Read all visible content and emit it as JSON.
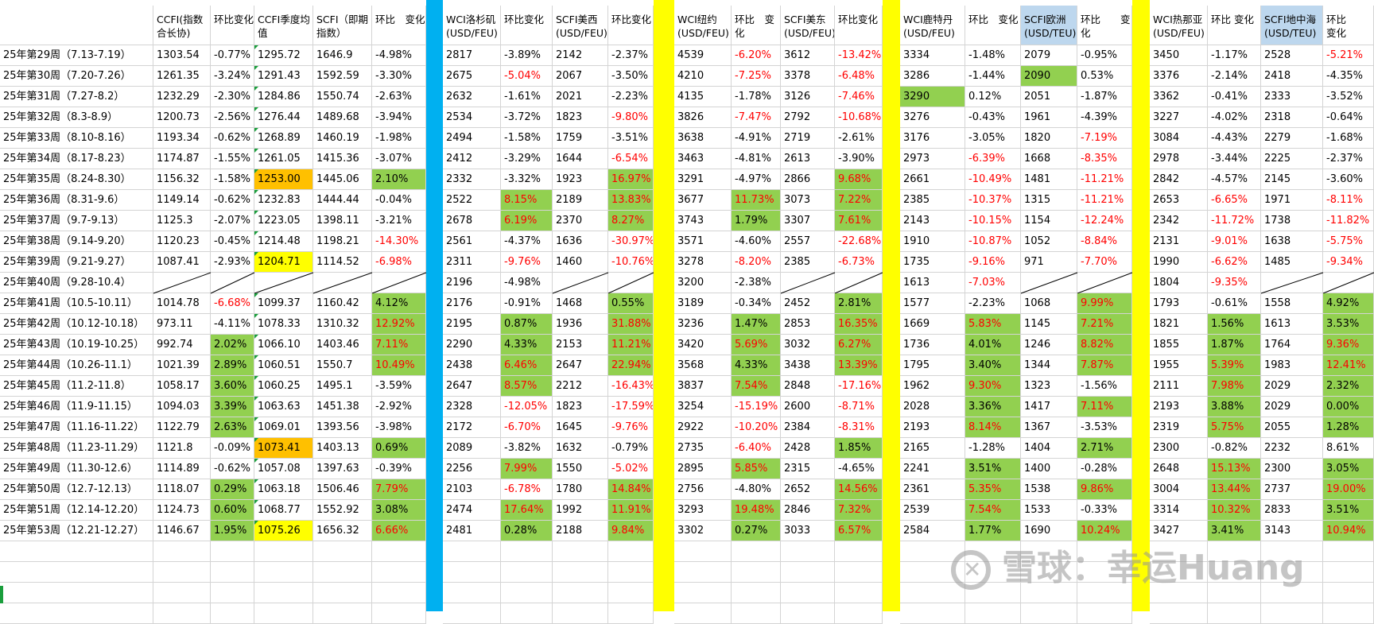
{
  "headers": [
    "CCFI(指数合长协)",
    "环比变化",
    "CCFI季度均值",
    "SCFI（即期指数）",
    "环比　变化",
    "WCI洛杉矶(USD/FEU)",
    "环比变化",
    "SCFI美西(USD/FEU)",
    "环比变化",
    "WCI纽约(USD/FEU)",
    "环比　变化",
    "SCFI美东(USD/FEU)",
    "环比变化",
    "WCI鹿特丹(USD/FEU)",
    "环比　变化",
    "SCFI欧洲(USD/TEU)",
    "环比　　变化",
    "WCI热那亚(USD/FEU)",
    "环比 变化",
    "SCFI地中海(USD/TEU)",
    "环比　　变化"
  ],
  "rows": [
    {
      "label": "25年第29周（7.13-7.19）",
      "cells": [
        "1303.54",
        "-0.77%",
        "1295.72",
        "1646.9",
        "-4.98%",
        "2817",
        "-3.89%",
        "2142",
        "-2.37%",
        "4539",
        "-6.20%",
        "3612",
        "-13.42%",
        "3334",
        "-1.48%",
        "2079",
        "-0.95%",
        "3450",
        "-1.17%",
        "2528",
        "-5.21%"
      ]
    },
    {
      "label": "25年第30周（7.20-7.26）",
      "cells": [
        "1261.35",
        "-3.24%",
        "1291.43",
        "1592.59",
        "-3.30%",
        "2675",
        "-5.04%",
        "2067",
        "-3.50%",
        "4210",
        "-7.25%",
        "3378",
        "-6.48%",
        "3286",
        "-1.44%",
        "2090",
        "0.53%",
        "3376",
        "-2.14%",
        "2418",
        "-4.35%"
      ]
    },
    {
      "label": "25年第31周（7.27-8.2）",
      "cells": [
        "1232.29",
        "-2.30%",
        "1284.86",
        "1550.74",
        "-2.63%",
        "2632",
        "-1.61%",
        "2021",
        "-2.23%",
        "4135",
        "-1.78%",
        "3126",
        "-7.46%",
        "3290",
        "0.12%",
        "2051",
        "-1.87%",
        "3362",
        "-0.41%",
        "2333",
        "-3.52%"
      ]
    },
    {
      "label": "25年第32周（8.3-8.9）",
      "cells": [
        "1200.73",
        "-2.56%",
        "1276.44",
        "1489.68",
        "-3.94%",
        "2534",
        "-3.72%",
        "1823",
        "-9.80%",
        "3826",
        "-7.47%",
        "2792",
        "-10.68%",
        "3276",
        "-0.43%",
        "1961",
        "-4.39%",
        "3227",
        "-4.02%",
        "2318",
        "-0.64%"
      ]
    },
    {
      "label": "25年第33周（8.10-8.16）",
      "cells": [
        "1193.34",
        "-0.62%",
        "1268.89",
        "1460.19",
        "-1.98%",
        "2494",
        "-1.58%",
        "1759",
        "-3.51%",
        "3638",
        "-4.91%",
        "2719",
        "-2.61%",
        "3176",
        "-3.05%",
        "1820",
        "-7.19%",
        "3084",
        "-4.43%",
        "2279",
        "-1.68%"
      ]
    },
    {
      "label": "25年第34周（8.17-8.23）",
      "cells": [
        "1174.87",
        "-1.55%",
        "1261.05",
        "1415.36",
        "-3.07%",
        "2412",
        "-3.29%",
        "1644",
        "-6.54%",
        "3463",
        "-4.81%",
        "2613",
        "-3.90%",
        "2973",
        "-6.39%",
        "1668",
        "-8.35%",
        "2978",
        "-3.44%",
        "2225",
        "-2.37%"
      ]
    },
    {
      "label": "25年第35周（8.24-8.30）",
      "cells": [
        "1156.32",
        "-1.58%",
        "1253.00",
        "1445.06",
        "2.10%",
        "2332",
        "-3.32%",
        "1923",
        "16.97%",
        "3291",
        "-4.97%",
        "2866",
        "9.68%",
        "2661",
        "-10.49%",
        "1481",
        "-11.21%",
        "2842",
        "-4.57%",
        "2145",
        "-3.60%"
      ]
    },
    {
      "label": "25年第36周（8.31-9.6）",
      "cells": [
        "1149.14",
        "-0.62%",
        "1232.83",
        "1444.44",
        "-0.04%",
        "2522",
        "8.15%",
        "2189",
        "13.83%",
        "3677",
        "11.73%",
        "3073",
        "7.22%",
        "2385",
        "-10.37%",
        "1315",
        "-11.21%",
        "2653",
        "-6.65%",
        "1971",
        "-8.11%"
      ]
    },
    {
      "label": "25年第37周（9.7-9.13）",
      "cells": [
        "1125.3",
        "-2.07%",
        "1223.05",
        "1398.11",
        "-3.21%",
        "2678",
        "6.19%",
        "2370",
        "8.27%",
        "3743",
        "1.79%",
        "3307",
        "7.61%",
        "2143",
        "-10.15%",
        "1154",
        "-12.24%",
        "2342",
        "-11.72%",
        "1738",
        "-11.82%"
      ]
    },
    {
      "label": "25年第38周（9.14-9.20）",
      "cells": [
        "1120.23",
        "-0.45%",
        "1214.48",
        "1198.21",
        "-14.30%",
        "2561",
        "-4.37%",
        "1636",
        "-30.97%",
        "3571",
        "-4.60%",
        "2557",
        "-22.68%",
        "1910",
        "-10.87%",
        "1052",
        "-8.84%",
        "2131",
        "-9.01%",
        "1638",
        "-5.75%"
      ]
    },
    {
      "label": "25年第39周（9.21-9.27）",
      "cells": [
        "1087.41",
        "-2.93%",
        "1204.71",
        "1114.52",
        "-6.98%",
        "2311",
        "-9.76%",
        "1460",
        "-10.76%",
        "3278",
        "-8.20%",
        "2385",
        "-6.73%",
        "1735",
        "-9.16%",
        "971",
        "-7.70%",
        "1990",
        "-6.62%",
        "1485",
        "-9.34%"
      ]
    },
    {
      "label": "25年第40周（9.28-10.4）",
      "cells": [
        "",
        "",
        "",
        "",
        "",
        "2196",
        "-4.98%",
        "",
        "",
        "3200",
        "-2.38%",
        "",
        "",
        "1613",
        "-7.03%",
        "",
        "",
        "1804",
        "-9.35%",
        "",
        ""
      ]
    },
    {
      "label": "25年第41周（10.5-10.11）",
      "cells": [
        "1014.78",
        "-6.68%",
        "1099.37",
        "1160.42",
        "4.12%",
        "2176",
        "-0.91%",
        "1468",
        "0.55%",
        "3189",
        "-0.34%",
        "2452",
        "2.81%",
        "1577",
        "-2.23%",
        "1068",
        "9.99%",
        "1793",
        "-0.61%",
        "1558",
        "4.92%"
      ]
    },
    {
      "label": "25年第42周（10.12-10.18）",
      "cells": [
        "973.11",
        "-4.11%",
        "1078.33",
        "1310.32",
        "12.92%",
        "2195",
        "0.87%",
        "1936",
        "31.88%",
        "3236",
        "1.47%",
        "2853",
        "16.35%",
        "1669",
        "5.83%",
        "1145",
        "7.21%",
        "1821",
        "1.56%",
        "1613",
        "3.53%"
      ]
    },
    {
      "label": "25年第43周（10.19-10.25）",
      "cells": [
        "992.74",
        "2.02%",
        "1066.10",
        "1403.46",
        "7.11%",
        "2290",
        "4.33%",
        "2153",
        "11.21%",
        "3420",
        "5.69%",
        "3032",
        "6.27%",
        "1736",
        "4.01%",
        "1246",
        "8.82%",
        "1855",
        "1.87%",
        "1764",
        "9.36%"
      ]
    },
    {
      "label": "25年第44周（10.26-11.1）",
      "cells": [
        "1021.39",
        "2.89%",
        "1060.51",
        "1550.7",
        "10.49%",
        "2438",
        "6.46%",
        "2647",
        "22.94%",
        "3568",
        "4.33%",
        "3438",
        "13.39%",
        "1795",
        "3.40%",
        "1344",
        "7.87%",
        "1955",
        "5.39%",
        "1983",
        "12.41%"
      ]
    },
    {
      "label": "25年第45周（11.2-11.8）",
      "cells": [
        "1058.17",
        "3.60%",
        "1060.25",
        "1495.1",
        "-3.59%",
        "2647",
        "8.57%",
        "2212",
        "-16.43%",
        "3837",
        "7.54%",
        "2848",
        "-17.16%",
        "1962",
        "9.30%",
        "1323",
        "-1.56%",
        "2111",
        "7.98%",
        "2029",
        "2.32%"
      ]
    },
    {
      "label": "25年第46周（11.9-11.15）",
      "cells": [
        "1094.03",
        "3.39%",
        "1063.63",
        "1451.38",
        "-2.92%",
        "2328",
        "-12.05%",
        "1823",
        "-17.59%",
        "3254",
        "-15.19%",
        "2600",
        "-8.71%",
        "2028",
        "3.36%",
        "1417",
        "7.11%",
        "2193",
        "3.88%",
        "2029",
        "0.00%"
      ]
    },
    {
      "label": "25年第47周（11.16-11.22）",
      "cells": [
        "1122.79",
        "2.63%",
        "1069.01",
        "1393.56",
        "-3.98%",
        "2172",
        "-6.70%",
        "1645",
        "-9.76%",
        "2922",
        "-10.20%",
        "2384",
        "-8.31%",
        "2193",
        "8.14%",
        "1367",
        "-3.53%",
        "2319",
        "5.75%",
        "2055",
        "1.28%"
      ]
    },
    {
      "label": "25年第48周（11.23-11.29）",
      "cells": [
        "1121.8",
        "-0.09%",
        "1073.41",
        "1403.13",
        "0.69%",
        "2089",
        "-3.82%",
        "1632",
        "-0.79%",
        "2735",
        "-6.40%",
        "2428",
        "1.85%",
        "2165",
        "-1.28%",
        "1404",
        "2.71%",
        "2300",
        "-0.82%",
        "2232",
        "8.61%"
      ]
    },
    {
      "label": "25年第49周（11.30-12.6）",
      "cells": [
        "1114.89",
        "-0.62%",
        "1057.08",
        "1397.63",
        "-0.39%",
        "2256",
        "7.99%",
        "1550",
        "-5.02%",
        "2895",
        "5.85%",
        "2315",
        "-4.65%",
        "2241",
        "3.51%",
        "1400",
        "-0.28%",
        "2648",
        "15.13%",
        "2300",
        "3.05%"
      ]
    },
    {
      "label": "25年第50周（12.7-12.13）",
      "cells": [
        "1118.07",
        "0.29%",
        "1063.18",
        "1506.46",
        "7.79%",
        "2103",
        "-6.78%",
        "1780",
        "14.84%",
        "2756",
        "-4.80%",
        "2652",
        "14.56%",
        "2361",
        "5.35%",
        "1538",
        "9.86%",
        "3004",
        "13.44%",
        "2737",
        "19.00%"
      ]
    },
    {
      "label": "25年第51周（12.14-12.20）",
      "cells": [
        "1124.73",
        "0.60%",
        "1068.77",
        "1552.92",
        "3.08%",
        "2474",
        "17.64%",
        "1992",
        "11.91%",
        "3293",
        "19.48%",
        "2846",
        "7.32%",
        "2539",
        "7.54%",
        "1533",
        "-0.33%",
        "3314",
        "10.32%",
        "2833",
        "3.51%"
      ]
    },
    {
      "label": "25年第53周（12.21-12.27）",
      "cells": [
        "1146.67",
        "1.95%",
        "1075.26",
        "1656.32",
        "6.66%",
        "2481",
        "0.28%",
        "2188",
        "9.84%",
        "3302",
        "0.27%",
        "3033",
        "6.57%",
        "2584",
        "1.77%",
        "1690",
        "10.24%",
        "3427",
        "3.41%",
        "3143",
        "10.94%"
      ]
    }
  ],
  "cell_colors": {
    "green": "#92d050",
    "yellow": "#ffff00",
    "orange": "#ffc000",
    "light_blue": "#bdd7ee",
    "negative_text": "#ff0000",
    "separator_blue": "#00b0f0",
    "separator_yellow": "#ffff00"
  },
  "watermark": {
    "text": "雪球：幸运Huang",
    "icon": "snowball-logo-icon"
  }
}
